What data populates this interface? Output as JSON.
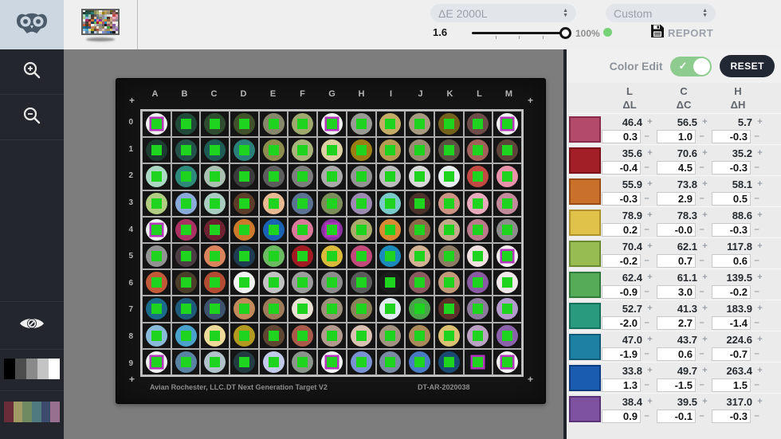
{
  "topbar": {
    "metric_dropdown": "ΔE 2000L",
    "preset_dropdown": "Custom",
    "slider_value": "1.6",
    "slider_percent": "100%",
    "report_label": "REPORT",
    "status_color": "#76d276"
  },
  "sidebar": {
    "icons": [
      "zoom-in",
      "zoom-out",
      "visibility-off"
    ],
    "grayscale_strip": [
      "#000000",
      "#4d4d4d",
      "#8a8a8a",
      "#c4c4c4",
      "#ffffff"
    ],
    "color_strip": [
      "#6a2c38",
      "#a29a64",
      "#6f8a60",
      "#4e7a80",
      "#3c4a6c",
      "#96708e"
    ]
  },
  "target": {
    "columns": [
      "A",
      "B",
      "C",
      "D",
      "E",
      "F",
      "G",
      "H",
      "I",
      "J",
      "K",
      "L",
      "M"
    ],
    "row_labels": [
      "0",
      "1",
      "2",
      "3",
      "4",
      "5",
      "6",
      "7",
      "8",
      "9"
    ],
    "footer_left": "Avian Rochester, LLC.",
    "footer_center": "DT Next Generation Target V2",
    "footer_right": "DT-AR-2020038",
    "marker_green": "#1ed41e",
    "marker_outline": "#b335bc",
    "outlined_cells": [
      "A0",
      "G0",
      "M0",
      "A4",
      "G4",
      "M5",
      "A9",
      "G9",
      "L9",
      "M9"
    ],
    "patches": [
      [
        "#f1f1f1",
        "#20493a",
        "#2f4c31",
        "#41512c",
        "#87876b",
        "#9fa96d",
        "#f3f3f3",
        "#999a94",
        "#c4ac66",
        "#a79a81",
        "#73611c",
        "#6d4c49",
        "#f3f3f3"
      ],
      [
        "#1e3b31",
        "#24524a",
        "#1e5b55",
        "#2a8078",
        "#8c8c4e",
        "#a9b47b",
        "#ddd0a2",
        "#9c7f14",
        "#b69b52",
        "#998c73",
        "#5b5342",
        "#a2625a",
        "#5e453a"
      ],
      [
        "#abd8c2",
        "#2d8a7a",
        "#aac1b2",
        "#3c3c3c",
        "#5d5d5d",
        "#7d7d7d",
        "#aaaaaa",
        "#939393",
        "#bcbcbc",
        "#d9d9d9",
        "#e9eef0",
        "#c24a42",
        "#e893aa"
      ],
      [
        "#b2cd82",
        "#8aaad9",
        "#aacdc2",
        "#5e3c2a",
        "#e9ba92",
        "#5c7292",
        "#7c8c5a",
        "#9c8ab2",
        "#7acaca",
        "#4c322a",
        "#cc9282",
        "#e9aabd",
        "#c28a9a"
      ],
      [
        "#f1f1f1",
        "#aa3262",
        "#6d2232",
        "#ca7a2a",
        "#1a62b2",
        "#da7a9a",
        "#8a32a2",
        "#aaaa6a",
        "#da8a32",
        "#8c6a4a",
        "#c2aa8a",
        "#ba7a8a",
        "#8c8c8c"
      ],
      [
        "#929292",
        "#4c3c44",
        "#da845e",
        "#203c52",
        "#6cba62",
        "#a21a22",
        "#daba3a",
        "#c24a7a",
        "#1a8aba",
        "#d2b292",
        "#8c7c64",
        "#f1e1e1",
        "#f4f0f0"
      ],
      [
        "#c25a3a",
        "#4c3f2a",
        "#b24c32",
        "#f2f2f2",
        "#c2c2c2",
        "#9c9c9c",
        "#8c8c8c",
        "#5c5c5c",
        "#1c1c1c",
        "#8c5c62",
        "#c29a7a",
        "#8a5aa2",
        "#f1e9e9"
      ],
      [
        "#1a6a8a",
        "#1e5a7a",
        "#3c526d",
        "#c28a5a",
        "#9c7a5a",
        "#e9e1d2",
        "#9c8f7a",
        "#8c825a",
        "#e1e9f1",
        "#4aa24a",
        "#5e322a",
        "#8c7a9a",
        "#b29aca"
      ],
      [
        "#8abada",
        "#4aa2ca",
        "#eeda9a",
        "#b29a22",
        "#5e4632",
        "#aa5a4a",
        "#b29a8e",
        "#dac2b2",
        "#a29282",
        "#aa8a5a",
        "#dac272",
        "#baa2c2",
        "#8a62aa"
      ],
      [
        "#f1f1f1",
        "#5a82a2",
        "#b2c2ca",
        "#223c42",
        "#c2cae9",
        "#8a948a",
        "#f3f3f3",
        "#7a92d2",
        "#7a8aa2",
        "#4a7ac2",
        "#1a4a72",
        "#15151c",
        "#f3f3f3"
      ]
    ]
  },
  "color_edit": {
    "title": "Color Edit",
    "toggle_on": true,
    "toggle_color": "#8ecb8e",
    "reset_label": "RESET",
    "reset_color": "#222834",
    "columns": [
      {
        "top": "L",
        "bottom": "ΔL"
      },
      {
        "top": "C",
        "bottom": "ΔC"
      },
      {
        "top": "H",
        "bottom": "ΔH"
      }
    ],
    "rows": [
      {
        "swatch": "#b24a6c",
        "border": "#8a2a4a",
        "l": "46.4",
        "dl": "0.3",
        "c": "56.5",
        "dc": "1.0",
        "h": "5.7",
        "dh": "-0.3"
      },
      {
        "swatch": "#a21f27",
        "border": "#7a1018",
        "l": "35.6",
        "dl": "-0.4",
        "c": "70.6",
        "dc": "4.5",
        "h": "35.2",
        "dh": "-0.3"
      },
      {
        "swatch": "#c9702a",
        "border": "#9a4a12",
        "l": "55.9",
        "dl": "-0.3",
        "c": "73.8",
        "dc": "2.9",
        "h": "58.1",
        "dh": "0.5"
      },
      {
        "swatch": "#e0c24a",
        "border": "#b0922a",
        "l": "78.9",
        "dl": "0.2",
        "c": "78.3",
        "dc": "-0.0",
        "h": "88.6",
        "dh": "-0.3"
      },
      {
        "swatch": "#96bc52",
        "border": "#6a8a32",
        "l": "70.4",
        "dl": "-0.2",
        "c": "62.1",
        "dc": "0.7",
        "h": "117.8",
        "dh": "0.6"
      },
      {
        "swatch": "#55ab57",
        "border": "#2f7a38",
        "l": "62.4",
        "dl": "-0.9",
        "c": "61.1",
        "dc": "3.0",
        "h": "139.5",
        "dh": "-0.2"
      },
      {
        "swatch": "#2a9a7e",
        "border": "#13705a",
        "l": "52.7",
        "dl": "-2.0",
        "c": "41.3",
        "dc": "2.7",
        "h": "183.9",
        "dh": "-1.4"
      },
      {
        "swatch": "#1e81a3",
        "border": "#105a78",
        "l": "47.0",
        "dl": "-1.9",
        "c": "43.7",
        "dc": "0.6",
        "h": "224.6",
        "dh": "-0.7"
      },
      {
        "swatch": "#1a5cb0",
        "border": "#0e3c80",
        "l": "33.8",
        "dl": "1.3",
        "c": "49.7",
        "dc": "-1.5",
        "h": "263.4",
        "dh": "1.5"
      },
      {
        "swatch": "#7e52a0",
        "border": "#5a3278",
        "l": "38.4",
        "dl": "0.9",
        "c": "39.5",
        "dc": "-0.1",
        "h": "317.0",
        "dh": "-0.3"
      }
    ],
    "plus_symbol": "+",
    "minus_symbol": "–"
  }
}
